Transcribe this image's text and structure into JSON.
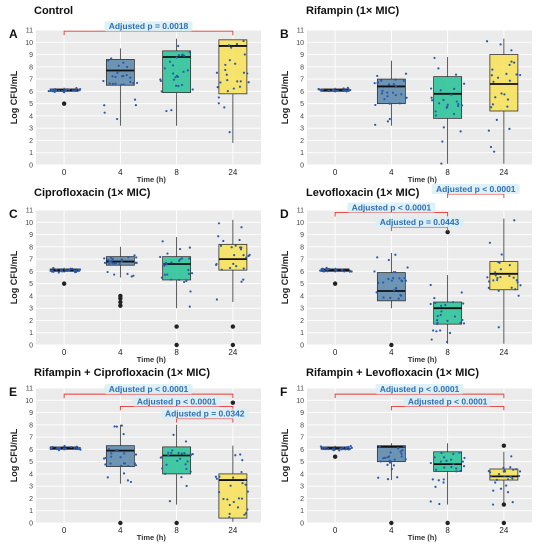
{
  "chart_data": [
    {
      "type": "box",
      "panel_label": "A",
      "title": "Control",
      "xlabel": "Time (h)",
      "ylabel": "Log CFU/mL",
      "categories": [
        "0",
        "4",
        "8",
        "24"
      ],
      "ylim": [
        0,
        11
      ],
      "yticks": [
        0,
        1,
        2,
        3,
        4,
        5,
        6,
        7,
        8,
        9,
        10,
        11
      ],
      "boxes": [
        {
          "whisker_low": 5.9,
          "q1": 6.0,
          "median": 6.1,
          "q3": 6.2,
          "whisker_high": 6.3,
          "outliers": [
            5.0
          ]
        },
        {
          "whisker_low": 3.2,
          "q1": 6.5,
          "median": 7.7,
          "q3": 8.6,
          "whisker_high": 9.5,
          "outliers": []
        },
        {
          "whisker_low": 3.2,
          "q1": 5.9,
          "median": 8.8,
          "q3": 9.3,
          "whisker_high": 10.3,
          "outliers": []
        },
        {
          "whisker_low": 1.8,
          "q1": 5.8,
          "median": 9.7,
          "q3": 10.2,
          "whisker_high": 10.2,
          "outliers": []
        }
      ],
      "annotations": [
        {
          "text": "Adjusted p = 0.0018",
          "from": "0",
          "to": "24",
          "y": 10.9
        }
      ]
    },
    {
      "type": "box",
      "panel_label": "B",
      "title": "Rifampin (1× MIC)",
      "xlabel": "Time (h)",
      "ylabel": "Log CFU/mL",
      "categories": [
        "0",
        "4",
        "8",
        "24"
      ],
      "ylim": [
        0,
        11
      ],
      "yticks": [
        0,
        1,
        2,
        3,
        4,
        5,
        6,
        7,
        8,
        9,
        10,
        11
      ],
      "boxes": [
        {
          "whisker_low": 5.9,
          "q1": 6.0,
          "median": 6.1,
          "q3": 6.2,
          "whisker_high": 6.3,
          "outliers": []
        },
        {
          "whisker_low": 3.2,
          "q1": 5.0,
          "median": 6.4,
          "q3": 7.0,
          "whisker_high": 8.5,
          "outliers": []
        },
        {
          "whisker_low": 0.1,
          "q1": 3.8,
          "median": 5.8,
          "q3": 7.2,
          "whisker_high": 8.8,
          "outliers": []
        },
        {
          "whisker_low": 0.1,
          "q1": 4.4,
          "median": 6.6,
          "q3": 9.0,
          "whisker_high": 10.3,
          "outliers": []
        }
      ],
      "annotations": []
    },
    {
      "type": "box",
      "panel_label": "C",
      "title": "Ciprofloxacin (1× MIC)",
      "xlabel": "Time (h)",
      "ylabel": "Log CFU/mL",
      "categories": [
        "0",
        "4",
        "8",
        "24"
      ],
      "ylim": [
        0,
        11
      ],
      "yticks": [
        0,
        1,
        2,
        3,
        4,
        5,
        6,
        7,
        8,
        9,
        10,
        11
      ],
      "boxes": [
        {
          "whisker_low": 5.9,
          "q1": 6.0,
          "median": 6.1,
          "q3": 6.2,
          "whisker_high": 6.3,
          "outliers": [
            5.0
          ]
        },
        {
          "whisker_low": 5.5,
          "q1": 6.5,
          "median": 6.8,
          "q3": 7.2,
          "whisker_high": 8.0,
          "outliers": [
            3.2,
            3.5,
            3.8,
            4.0
          ]
        },
        {
          "whisker_low": 3.0,
          "q1": 5.3,
          "median": 6.6,
          "q3": 7.2,
          "whisker_high": 8.8,
          "outliers": [
            1.5,
            0.0
          ]
        },
        {
          "whisker_low": 3.5,
          "q1": 6.1,
          "median": 7.0,
          "q3": 8.2,
          "whisker_high": 10.2,
          "outliers": [
            1.5,
            0.0
          ]
        }
      ],
      "annotations": []
    },
    {
      "type": "box",
      "panel_label": "D",
      "title": "Levofloxacin (1× MIC)",
      "xlabel": "Time (h)",
      "ylabel": "Log CFU/mL",
      "categories": [
        "0",
        "4",
        "8",
        "24"
      ],
      "ylim": [
        0,
        11
      ],
      "yticks": [
        0,
        1,
        2,
        3,
        4,
        5,
        6,
        7,
        8,
        9,
        10,
        11
      ],
      "boxes": [
        {
          "whisker_low": 5.9,
          "q1": 6.0,
          "median": 6.1,
          "q3": 6.2,
          "whisker_high": 6.3,
          "outliers": [
            5.0
          ]
        },
        {
          "whisker_low": 3.0,
          "q1": 3.6,
          "median": 4.4,
          "q3": 5.9,
          "whisker_high": 7.5,
          "outliers": [
            0.0
          ]
        },
        {
          "whisker_low": 0.1,
          "q1": 1.7,
          "median": 3.0,
          "q3": 3.5,
          "whisker_high": 5.7,
          "outliers": [
            9.2
          ]
        },
        {
          "whisker_low": 0.1,
          "q1": 4.5,
          "median": 5.8,
          "q3": 6.8,
          "whisker_high": 10.3,
          "outliers": []
        }
      ],
      "annotations": [
        {
          "text": "Adjusted p < 0.0001",
          "from": "8",
          "to": "24",
          "y": 12.3
        },
        {
          "text": "Adjusted p < 0.0001",
          "from": "0",
          "to": "8",
          "y": 10.8
        },
        {
          "text": "Adjusted p = 0.0443",
          "from": "4",
          "to": "8",
          "y": 9.6
        }
      ]
    },
    {
      "type": "box",
      "panel_label": "E",
      "title": "Rifampin + Ciprofloxacin (1× MIC)",
      "xlabel": "Time (h)",
      "ylabel": "Log CFU/mL",
      "categories": [
        "0",
        "4",
        "8",
        "24"
      ],
      "ylim": [
        0,
        11
      ],
      "yticks": [
        0,
        1,
        2,
        3,
        4,
        5,
        6,
        7,
        8,
        9,
        10,
        11
      ],
      "boxes": [
        {
          "whisker_low": 5.9,
          "q1": 6.0,
          "median": 6.1,
          "q3": 6.2,
          "whisker_high": 6.3,
          "outliers": []
        },
        {
          "whisker_low": 3.2,
          "q1": 4.6,
          "median": 5.9,
          "q3": 6.3,
          "whisker_high": 8.0,
          "outliers": [
            0.0
          ]
        },
        {
          "whisker_low": 1.5,
          "q1": 4.0,
          "median": 5.5,
          "q3": 6.2,
          "whisker_high": 8.0,
          "outliers": [
            0.0
          ]
        },
        {
          "whisker_low": 0.1,
          "q1": 0.4,
          "median": 3.5,
          "q3": 4.0,
          "whisker_high": 6.3,
          "outliers": [
            9.8
          ]
        }
      ],
      "annotations": [
        {
          "text": "Adjusted p < 0.0001",
          "from": "0",
          "to": "24",
          "y": 10.5
        },
        {
          "text": "Adjusted p < 0.0001",
          "from": "4",
          "to": "24",
          "y": 9.5
        },
        {
          "text": "Adjusted p = 0.0342",
          "from": "8",
          "to": "24",
          "y": 8.5
        }
      ]
    },
    {
      "type": "box",
      "panel_label": "F",
      "title": "Rifampin + Levofloxacin (1× MIC)",
      "xlabel": "Time (h)",
      "ylabel": "Log CFU/mL",
      "categories": [
        "0",
        "4",
        "8",
        "24"
      ],
      "ylim": [
        0,
        11
      ],
      "yticks": [
        0,
        1,
        2,
        3,
        4,
        5,
        6,
        7,
        8,
        9,
        10,
        11
      ],
      "boxes": [
        {
          "whisker_low": 5.9,
          "q1": 6.0,
          "median": 6.1,
          "q3": 6.2,
          "whisker_high": 6.3,
          "outliers": [
            5.4
          ]
        },
        {
          "whisker_low": 3.5,
          "q1": 5.0,
          "median": 6.2,
          "q3": 6.3,
          "whisker_high": 6.5,
          "outliers": [
            0.0
          ]
        },
        {
          "whisker_low": 1.5,
          "q1": 4.2,
          "median": 4.8,
          "q3": 5.8,
          "whisker_high": 6.5,
          "outliers": [
            0.0
          ]
        },
        {
          "whisker_low": 1.5,
          "q1": 3.5,
          "median": 3.8,
          "q3": 4.4,
          "whisker_high": 5.8,
          "outliers": [
            6.3,
            1.5,
            0.0
          ]
        }
      ],
      "annotations": [
        {
          "text": "Adjusted p < 0.0001",
          "from": "0",
          "to": "24",
          "y": 10.5
        },
        {
          "text": "Adjusted p < 0.0001",
          "from": "4",
          "to": "24",
          "y": 9.5
        }
      ]
    }
  ],
  "colors": {
    "panel_bg": "#ebebeb",
    "grid": "#ffffff",
    "box_0": "#3f5f8a",
    "box_4": "#5f8bad",
    "box_8": "#2fc49a",
    "box_24": "#f7e25e",
    "box_edge": "#333333",
    "points": "#2c59a8",
    "bracket": "#e53935",
    "annotation_text": "#2f6fb6",
    "annotation_bg": "#d8eef6"
  }
}
